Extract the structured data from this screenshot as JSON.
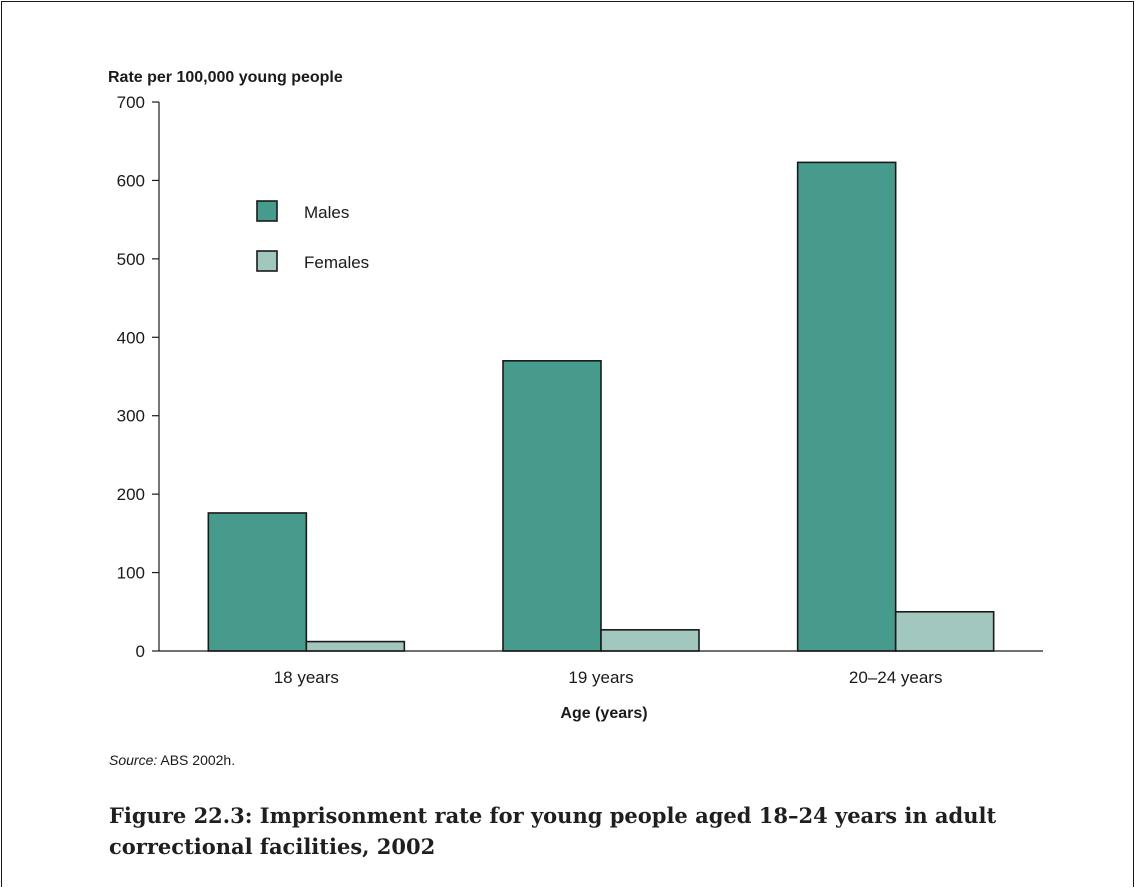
{
  "chart_data": {
    "type": "bar",
    "ylabel": "Rate per 100,000 young people",
    "xlabel": "Age (years)",
    "categories": [
      "18 years",
      "19 years",
      "20–24 years"
    ],
    "series": [
      {
        "name": "Males",
        "values": [
          176,
          370,
          623
        ],
        "color": "#469b8c"
      },
      {
        "name": "Females",
        "values": [
          12,
          27,
          50
        ],
        "color": "#a1c7bf"
      }
    ],
    "ylim": [
      0,
      700
    ],
    "yticks": [
      0,
      100,
      200,
      300,
      400,
      500,
      600,
      700
    ],
    "grid": false,
    "legend_position": "top-left"
  },
  "source": {
    "label": "Source:",
    "text": "ABS 2002h."
  },
  "caption": "Figure 22.3: Imprisonment rate for young people aged 18–24 years in adult correctional facilities, 2002"
}
